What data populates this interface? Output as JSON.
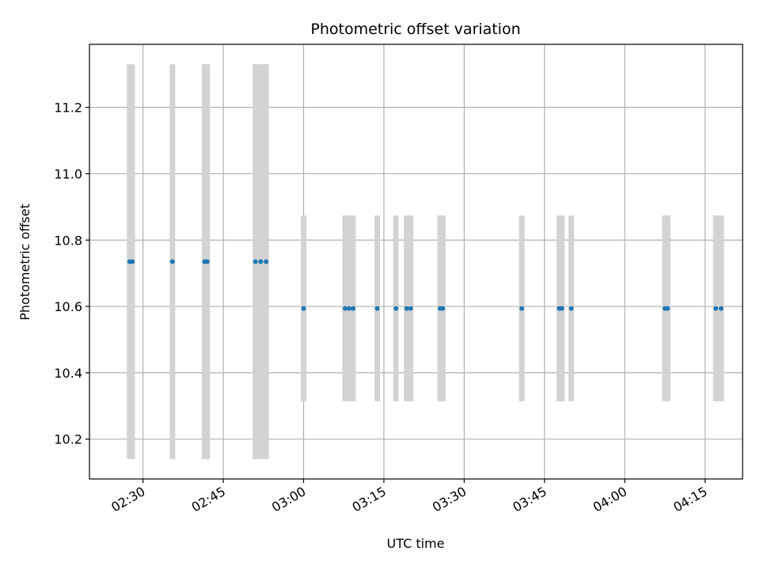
{
  "chart_data": {
    "type": "scatter",
    "title": "Photometric offset variation",
    "xlabel": "UTC time",
    "ylabel": "Photometric offset",
    "xlim": [
      "02:20",
      "04:22"
    ],
    "ylim": [
      10.08,
      11.39
    ],
    "grid": true,
    "x_ticks": [
      "02:30",
      "02:45",
      "03:00",
      "03:15",
      "03:30",
      "03:45",
      "04:00",
      "04:15"
    ],
    "y_ticks": [
      "10.2",
      "10.4",
      "10.6",
      "10.8",
      "11.0",
      "11.2"
    ],
    "colors": {
      "points": "#1f77b4",
      "error_bars": "#d3d3d3",
      "grid": "#b0b0b0"
    },
    "series": [
      {
        "x": [
          "02:27:30",
          "02:28:00",
          "02:35:30",
          "02:41:30",
          "02:42:00",
          "02:51:00",
          "02:52:00",
          "02:53:00"
        ],
        "y": [
          10.735,
          10.735,
          10.735,
          10.735,
          10.735,
          10.735,
          10.735,
          10.735
        ],
        "err": 0.595
      },
      {
        "x": [
          "03:00:00",
          "03:07:45",
          "03:08:30",
          "03:09:15",
          "03:13:45",
          "03:17:15",
          "03:19:15",
          "03:20:00",
          "03:25:30",
          "03:26:00",
          "03:40:45",
          "03:47:45",
          "03:48:15",
          "03:50:00",
          "04:07:30",
          "04:08:00",
          "04:17:00",
          "04:18:00"
        ],
        "y": [
          10.594,
          10.594,
          10.594,
          10.594,
          10.594,
          10.594,
          10.594,
          10.594,
          10.594,
          10.594,
          10.594,
          10.594,
          10.594,
          10.594,
          10.594,
          10.594,
          10.594,
          10.594
        ],
        "err": 0.28
      }
    ]
  }
}
